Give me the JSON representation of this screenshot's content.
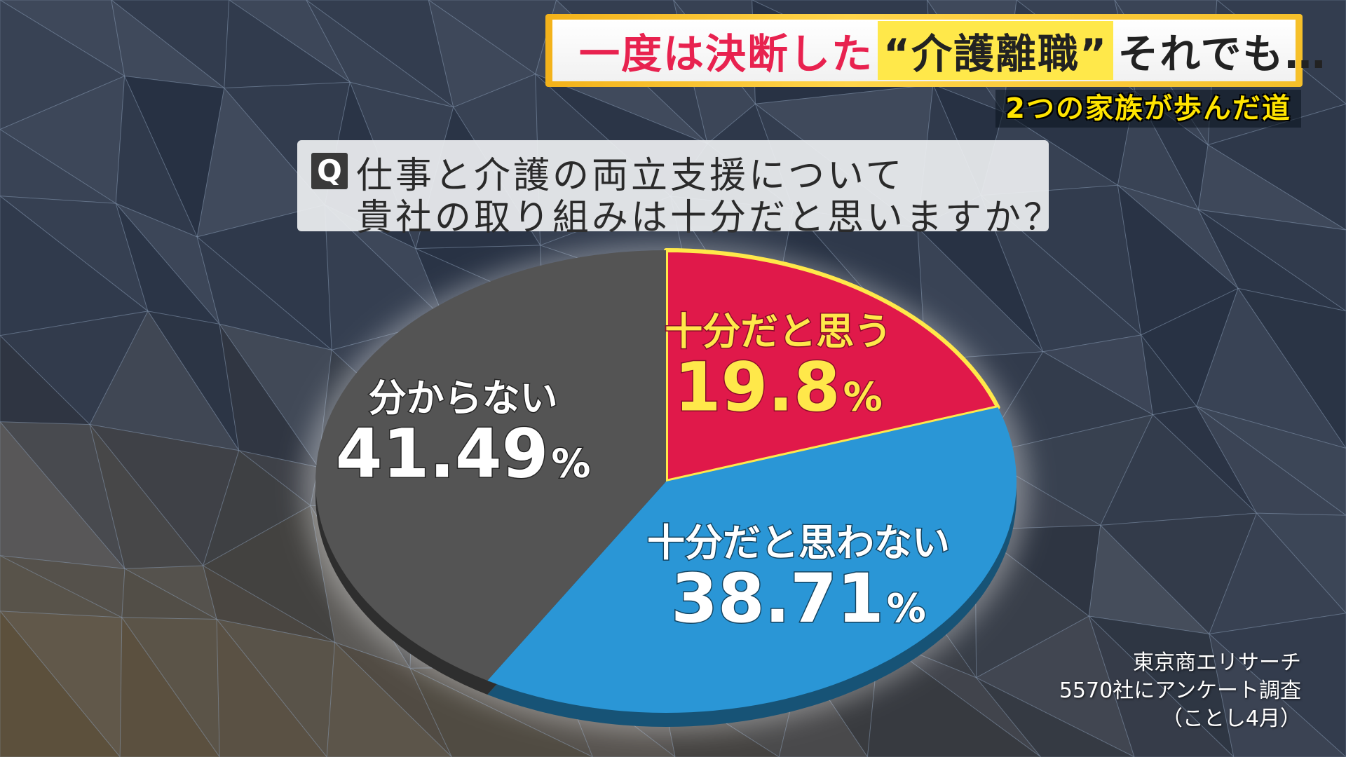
{
  "banner": {
    "part1": "一度は決断した",
    "part2": "“介護離職”",
    "part3": "それでも…"
  },
  "subtitle": "2つの家族が歩んだ道",
  "question": {
    "mark": "Q",
    "line1": "仕事と介護の両立支援について",
    "line2": "貴社の取り組みは十分だと思いますか？"
  },
  "source": {
    "line1": "東京商エリサーチ",
    "line2": "5570社にアンケート調査",
    "line3": "（ことし4月）"
  },
  "chart_data": {
    "type": "pie",
    "slices": [
      {
        "label": "十分だと思う",
        "value": 19.8,
        "display": "19.8",
        "unit": "%",
        "color": "#e0194a",
        "text_color": "#ffe84a"
      },
      {
        "label": "十分だと思わない",
        "value": 38.71,
        "display": "38.71",
        "unit": "%",
        "color": "#2a96d6",
        "text_color": "#ffffff"
      },
      {
        "label": "分からない",
        "value": 41.49,
        "display": "41.49",
        "unit": "%",
        "color": "#545454",
        "text_color": "#ffffff"
      }
    ]
  },
  "colors": {
    "banner_accent": "#e8224f",
    "highlight": "#ffe84a",
    "subtitle": "#ffe400"
  }
}
